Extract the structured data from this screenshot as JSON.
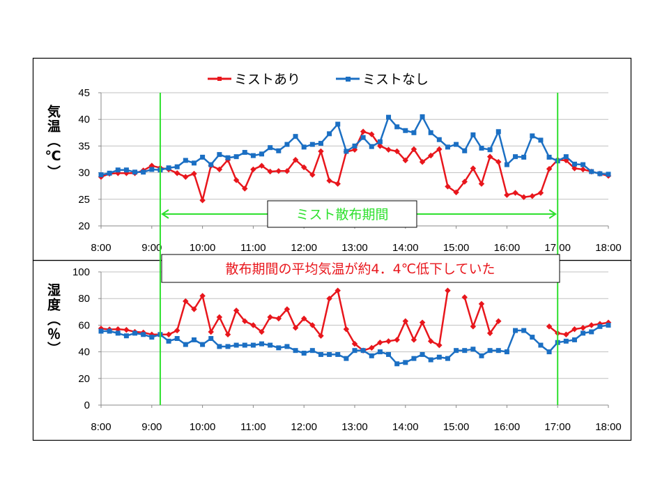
{
  "colors": {
    "series1": "#e8161c",
    "series2": "#1b6fc3",
    "marker_line": "#2ee02e",
    "grid": "#c0c0c0",
    "annotation_text": "#e8161c",
    "period_text": "#2ee02e"
  },
  "legend": {
    "entries": [
      "ミストあり",
      "ミストなし"
    ],
    "placement": "top-center"
  },
  "annotations": {
    "period_label": "ミスト散布期間",
    "summary": "散布期間の平均気温が約4．4℃低下していた",
    "period_start": "9:10",
    "period_end": "17:00"
  },
  "chart_data": [
    {
      "type": "line",
      "ylabel": "気温（℃）",
      "xlabel": "",
      "ylim": [
        20,
        45
      ],
      "yticks": [
        20,
        25,
        30,
        35,
        40,
        45
      ],
      "xticks": [
        "8:00",
        "9:00",
        "10:00",
        "11:00",
        "12:00",
        "13:00",
        "14:00",
        "15:00",
        "16:00",
        "17:00",
        "18:00"
      ],
      "grid": true,
      "x": [
        "8:00",
        "8:10",
        "8:20",
        "8:30",
        "8:40",
        "8:50",
        "9:00",
        "9:10",
        "9:20",
        "9:30",
        "9:40",
        "9:50",
        "10:00",
        "10:10",
        "10:20",
        "10:30",
        "10:40",
        "10:50",
        "11:00",
        "11:10",
        "11:20",
        "11:30",
        "11:40",
        "11:50",
        "12:00",
        "12:10",
        "12:20",
        "12:30",
        "12:40",
        "12:50",
        "13:00",
        "13:10",
        "13:20",
        "13:30",
        "13:40",
        "13:50",
        "14:00",
        "14:10",
        "14:20",
        "14:30",
        "14:40",
        "14:50",
        "15:00",
        "15:10",
        "15:20",
        "15:30",
        "15:40",
        "15:50",
        "16:00",
        "16:10",
        "16:20",
        "16:30",
        "16:40",
        "16:50",
        "17:00",
        "17:10",
        "17:20",
        "17:30",
        "17:40",
        "17:50",
        "18:00"
      ],
      "series": [
        {
          "name": "ミストあり",
          "values": [
            29.2,
            29.8,
            29.9,
            29.9,
            29.9,
            30.4,
            31.3,
            30.9,
            30.6,
            29.9,
            29.2,
            29.8,
            24.8,
            31.3,
            30.6,
            32.4,
            28.6,
            27.0,
            30.6,
            31.3,
            30.2,
            30.3,
            30.3,
            32.4,
            31.0,
            29.6,
            34.0,
            28.5,
            27.9,
            33.9,
            34.3,
            37.7,
            37.2,
            35.0,
            34.3,
            34.0,
            32.3,
            34.4,
            32.0,
            33.2,
            34.4,
            27.4,
            26.3,
            28.3,
            30.8,
            27.9,
            33.0,
            32.0,
            25.8,
            26.2,
            25.4,
            25.6,
            26.2,
            30.7,
            32.4,
            32.3,
            30.8,
            30.6,
            30.2,
            29.8,
            29.4
          ]
        },
        {
          "name": "ミストなし",
          "values": [
            29.6,
            29.9,
            30.5,
            30.5,
            30.1,
            30.1,
            30.6,
            30.5,
            30.9,
            31.1,
            32.3,
            31.8,
            32.9,
            31.5,
            33.4,
            32.8,
            33.0,
            33.8,
            33.2,
            33.5,
            34.7,
            34.1,
            35.3,
            36.8,
            34.8,
            35.3,
            35.5,
            37.3,
            39.1,
            34.0,
            35.0,
            36.6,
            34.9,
            35.8,
            40.4,
            38.6,
            37.9,
            37.5,
            40.5,
            37.5,
            36.2,
            34.8,
            35.3,
            34.1,
            37.1,
            34.6,
            34.3,
            37.7,
            31.5,
            33.0,
            32.9,
            36.9,
            36.1,
            32.9,
            32.2,
            33.0,
            31.6,
            31.5,
            30.2,
            29.8,
            29.7
          ]
        }
      ]
    },
    {
      "type": "line",
      "ylabel": "湿度（％）",
      "xlabel": "",
      "ylim": [
        0,
        100
      ],
      "yticks": [
        0,
        20,
        40,
        60,
        80,
        100
      ],
      "xticks": [
        "8:00",
        "9:00",
        "10:00",
        "11:00",
        "12:00",
        "13:00",
        "14:00",
        "15:00",
        "16:00",
        "17:00",
        "18:00"
      ],
      "grid": true,
      "x": [
        "8:00",
        "8:10",
        "8:20",
        "8:30",
        "8:40",
        "8:50",
        "9:00",
        "9:10",
        "9:20",
        "9:30",
        "9:40",
        "9:50",
        "10:00",
        "10:10",
        "10:20",
        "10:30",
        "10:40",
        "10:50",
        "11:00",
        "11:10",
        "11:20",
        "11:30",
        "11:40",
        "11:50",
        "12:00",
        "12:10",
        "12:20",
        "12:30",
        "12:40",
        "12:50",
        "13:00",
        "13:10",
        "13:20",
        "13:30",
        "13:40",
        "13:50",
        "14:00",
        "14:10",
        "14:20",
        "14:30",
        "14:40",
        "14:50",
        "15:00",
        "15:10",
        "15:20",
        "15:30",
        "15:40",
        "15:50",
        "16:00",
        "16:10",
        "16:20",
        "16:30",
        "16:40",
        "16:50",
        "17:00",
        "17:10",
        "17:20",
        "17:30",
        "17:40",
        "17:50",
        "18:00"
      ],
      "series": [
        {
          "name": "ミストあり",
          "values": [
            57.5,
            56.8,
            57.0,
            56.5,
            55.0,
            54.5,
            53.0,
            53.0,
            53.0,
            56.0,
            78.0,
            72.0,
            82.0,
            55.0,
            66.0,
            53.0,
            71.0,
            63.0,
            60.0,
            55.0,
            66.0,
            65.0,
            72.0,
            58.0,
            65.0,
            60.0,
            52.0,
            80.0,
            86.0,
            57.0,
            46.0,
            41.0,
            43.0,
            47.0,
            48.0,
            49.0,
            63.0,
            49.0,
            62.0,
            48.0,
            45.0,
            86.0,
            null,
            81.0,
            59.0,
            76.0,
            54.0,
            63.0,
            null,
            null,
            null,
            null,
            null,
            59.0,
            54.0,
            53.0,
            57.0,
            58.0,
            60.0,
            61.0,
            62.0
          ]
        },
        {
          "name": "ミストなし",
          "values": [
            55.5,
            55.5,
            54.0,
            52.0,
            54.0,
            53.0,
            51.0,
            53.0,
            48.0,
            50.0,
            45.5,
            49.0,
            45.5,
            50.0,
            44.0,
            44.0,
            45.0,
            45.0,
            45.0,
            46.0,
            45.0,
            43.0,
            44.0,
            41.0,
            39.0,
            41.0,
            38.0,
            38.0,
            38.0,
            35.0,
            41.0,
            41.0,
            37.0,
            40.0,
            38.0,
            31.0,
            32.0,
            35.0,
            38.0,
            34.0,
            36.0,
            35.0,
            41.0,
            41.0,
            42.0,
            37.0,
            41.0,
            41.0,
            40.0,
            56.0,
            56.0,
            51.0,
            45.0,
            40.0,
            47.0,
            48.0,
            49.0,
            54.0,
            55.0,
            59.0,
            60.0
          ]
        }
      ]
    }
  ]
}
